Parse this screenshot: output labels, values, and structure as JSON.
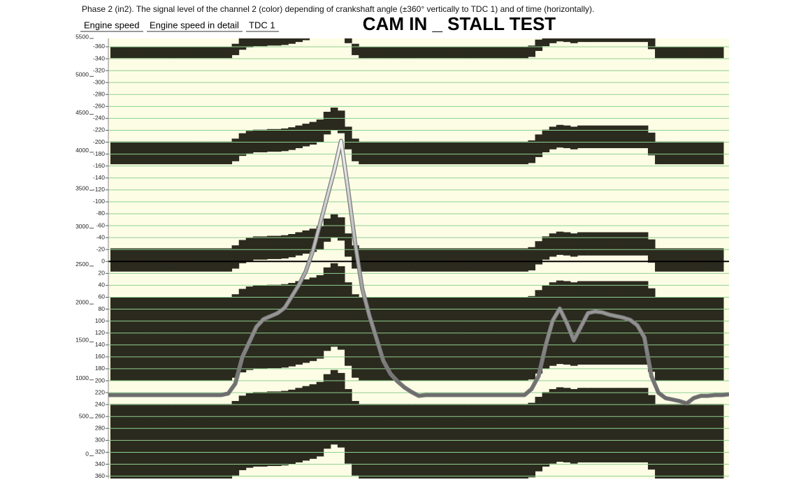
{
  "header": {
    "description": "Phase 2 (in2). The signal level of the channel 2 (color) depending of crankshaft angle (±360° vertically to TDC 1) and of time (horizontally).",
    "tabs": [
      "Engine speed",
      "Engine speed in detail",
      "TDC 1"
    ]
  },
  "chart_data": {
    "type": "line",
    "title": "CAM IN _ STALL TEST",
    "ylim": [
      -300,
      5500
    ],
    "yticks": [
      0,
      500,
      1000,
      1500,
      2000,
      2500,
      3000,
      3500,
      4000,
      4500,
      5000,
      5500
    ],
    "y2lim": [
      364,
      -374
    ],
    "y2ticks": [
      -360,
      -340,
      -320,
      -300,
      -280,
      -260,
      -240,
      -220,
      -200,
      -180,
      -160,
      -140,
      -120,
      -100,
      -80,
      -60,
      -40,
      -20,
      0,
      20,
      40,
      60,
      80,
      100,
      120,
      140,
      160,
      180,
      200,
      220,
      240,
      260,
      280,
      300,
      320,
      340,
      360
    ],
    "grid": true,
    "grid_color": "#8fd08f",
    "background": "#fdfde6",
    "series": [
      {
        "color": "#7a7a7a",
        "values": [
          800,
          800,
          800,
          800,
          800,
          800,
          800,
          800,
          800,
          800,
          800,
          800,
          800,
          800,
          800,
          800,
          800,
          820,
          950,
          1300,
          1500,
          1700,
          1800,
          1840,
          1880,
          1950,
          2100,
          2250,
          2430,
          2700,
          3050,
          3400,
          3750,
          4150,
          3500,
          2800,
          2200,
          1850,
          1550,
          1250,
          1080,
          980,
          900,
          840,
          790,
          800,
          800,
          800,
          800,
          800,
          800,
          800,
          800,
          800,
          800,
          800,
          800,
          800,
          800,
          800,
          880,
          1050,
          1450,
          1780,
          1940,
          1750,
          1520,
          1700,
          1880,
          1900,
          1890,
          1860,
          1840,
          1820,
          1790,
          1720,
          1560,
          1050,
          830,
          760,
          740,
          720,
          690,
          760,
          790,
          790,
          800,
          800,
          810
        ]
      }
    ],
    "bands": {
      "color": "#2b2a1e",
      "intervals": [
        [
          -360,
          -341
        ],
        [
          -201,
          -163
        ],
        [
          -22,
          17
        ],
        [
          60,
          200
        ],
        [
          239,
          364
        ]
      ],
      "shift": [
        0,
        0,
        0,
        0,
        0,
        0,
        0,
        0,
        0,
        0,
        0,
        0,
        0,
        0,
        0,
        0,
        0,
        0,
        5,
        14,
        18,
        20,
        20,
        21,
        21,
        22,
        24,
        27,
        30,
        33,
        37,
        50,
        57,
        52,
        25,
        5,
        0,
        0,
        0,
        0,
        0,
        0,
        0,
        0,
        0,
        0,
        0,
        0,
        0,
        0,
        0,
        0,
        0,
        0,
        0,
        0,
        0,
        0,
        0,
        0,
        2,
        12,
        20,
        25,
        28,
        27,
        25,
        27,
        27,
        27,
        27,
        27,
        27,
        27,
        27,
        27,
        27,
        15,
        0,
        0,
        0,
        0,
        0,
        0,
        0,
        0,
        0,
        0,
        0
      ]
    }
  }
}
